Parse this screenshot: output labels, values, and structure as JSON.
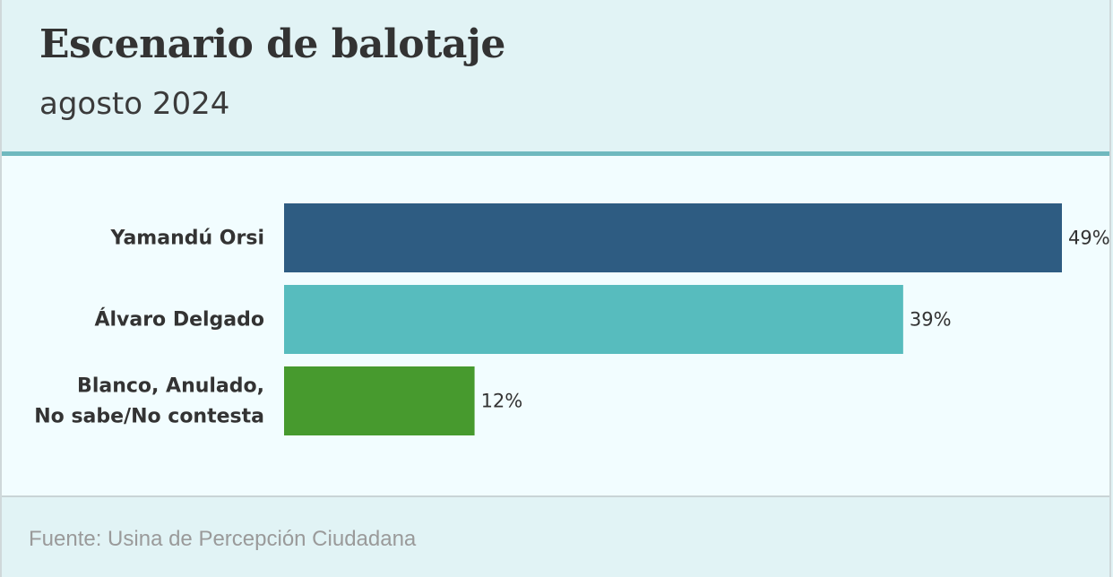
{
  "header": {
    "title": "Escenario de balotaje",
    "subtitle": "agosto 2024"
  },
  "footer": {
    "source": "Fuente: Usina de Percepción Ciudadana"
  },
  "chart_data": {
    "type": "bar",
    "orientation": "horizontal",
    "title": "Escenario de balotaje",
    "subtitle": "agosto 2024",
    "categories": [
      "Yamandú Orsi",
      "Álvaro Delgado",
      "Blanco, Anulado, No sabe/No contesta"
    ],
    "values": [
      49,
      39,
      12
    ],
    "value_labels": [
      "49%",
      "39%",
      "12%"
    ],
    "colors": [
      "#2e5c82",
      "#57bcbe",
      "#479a2e"
    ],
    "xlim": [
      0,
      49
    ],
    "grid": false,
    "legend": "none"
  }
}
